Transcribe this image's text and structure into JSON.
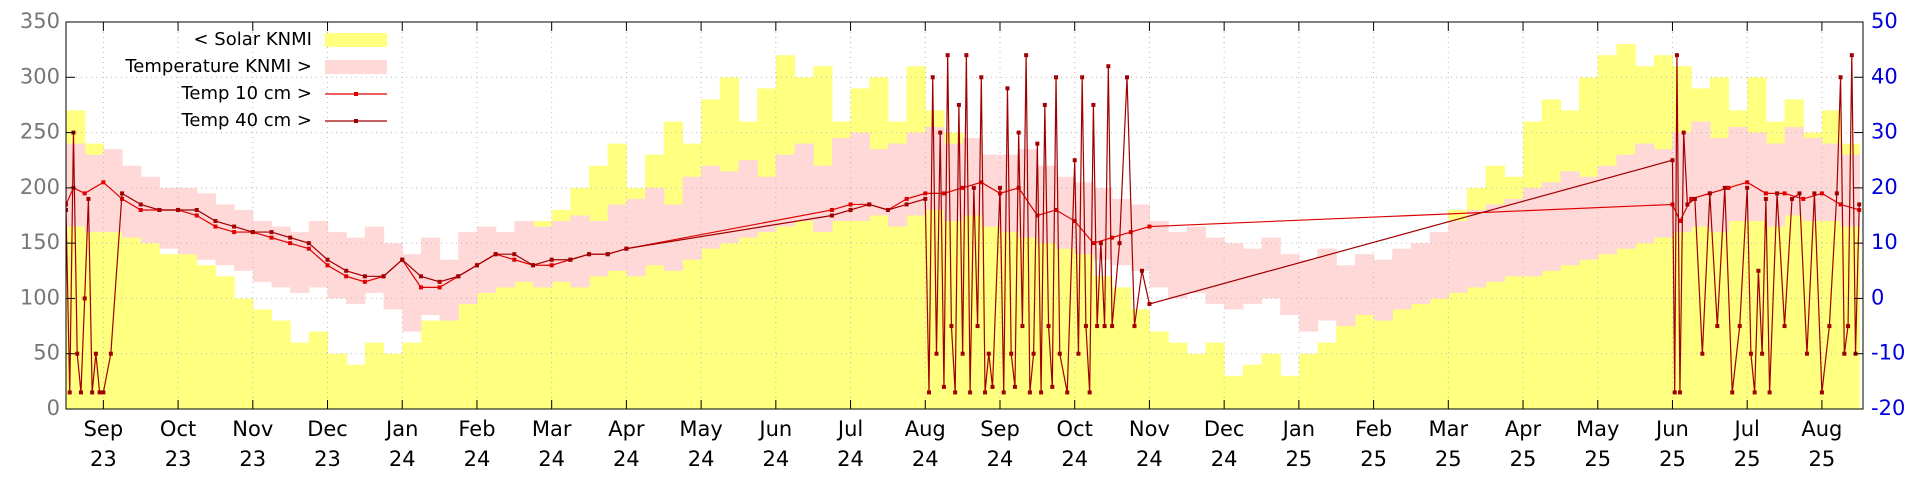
{
  "chart_data": {
    "type": "timeseries",
    "xlim": [
      -0.5,
      23.55
    ],
    "xticks": [
      {
        "value": 0,
        "label": "Sep\n23"
      },
      {
        "value": 1,
        "label": "Oct\n23"
      },
      {
        "value": 2,
        "label": "Nov\n23"
      },
      {
        "value": 3,
        "label": "Dec\n23"
      },
      {
        "value": 4,
        "label": "Jan\n24"
      },
      {
        "value": 5,
        "label": "Feb\n24"
      },
      {
        "value": 6,
        "label": "Mar\n24"
      },
      {
        "value": 7,
        "label": "Apr\n24"
      },
      {
        "value": 8,
        "label": "May\n24"
      },
      {
        "value": 9,
        "label": "Jun\n24"
      },
      {
        "value": 10,
        "label": "Jul\n24"
      },
      {
        "value": 11,
        "label": "Aug\n24"
      },
      {
        "value": 12,
        "label": "Sep\n24"
      },
      {
        "value": 13,
        "label": "Oct\n24"
      },
      {
        "value": 14,
        "label": "Nov\n24"
      },
      {
        "value": 15,
        "label": "Dec\n24"
      },
      {
        "value": 16,
        "label": "Jan\n25"
      },
      {
        "value": 17,
        "label": "Feb\n25"
      },
      {
        "value": 18,
        "label": "Mar\n25"
      },
      {
        "value": 19,
        "label": "Apr\n25"
      },
      {
        "value": 20,
        "label": "May\n25"
      },
      {
        "value": 21,
        "label": "Jun\n25"
      },
      {
        "value": 22,
        "label": "Jul\n25"
      },
      {
        "value": 23,
        "label": "Aug\n25"
      }
    ],
    "ylim": [
      0,
      350
    ],
    "yticks": [
      0,
      50,
      100,
      150,
      200,
      250,
      300,
      350
    ],
    "y2lim": [
      -20,
      50
    ],
    "y2ticks": [
      -20,
      -10,
      0,
      10,
      20,
      30,
      40,
      50
    ],
    "grid": true,
    "legend": "top-left",
    "x": [
      -0.5,
      -0.25,
      0,
      0.25,
      0.5,
      0.75,
      1,
      1.25,
      1.5,
      1.75,
      2,
      2.25,
      2.5,
      2.75,
      3,
      3.25,
      3.5,
      3.75,
      4,
      4.25,
      4.5,
      4.75,
      5,
      5.25,
      5.5,
      5.75,
      6,
      6.25,
      6.5,
      6.75,
      7,
      7.25,
      7.5,
      7.75,
      8,
      8.25,
      8.5,
      8.75,
      9,
      9.25,
      9.5,
      9.75,
      10,
      10.25,
      10.5,
      10.75,
      11,
      11.25,
      11.5,
      11.75,
      12,
      12.25,
      12.5,
      12.75,
      13,
      13.25,
      13.5,
      13.75,
      14,
      14.25,
      14.5,
      14.75,
      15,
      15.25,
      15.5,
      15.75,
      16,
      16.25,
      16.5,
      16.75,
      17,
      17.25,
      17.5,
      17.75,
      18,
      18.25,
      18.5,
      18.75,
      19,
      19.25,
      19.5,
      19.75,
      20,
      20.25,
      20.5,
      20.75,
      21,
      21.25,
      21.5,
      21.75,
      22,
      22.25,
      22.5,
      22.75,
      23,
      23.25
    ],
    "series": [
      {
        "name": "< Solar KNMI",
        "kind": "area",
        "color": "#ffff80",
        "axis": "y",
        "values": [
          270,
          240,
          200,
          170,
          160,
          140,
          150,
          130,
          120,
          100,
          90,
          80,
          60,
          70,
          50,
          40,
          60,
          50,
          60,
          80,
          90,
          100,
          110,
          130,
          150,
          170,
          180,
          200,
          220,
          240,
          200,
          230,
          260,
          240,
          280,
          300,
          260,
          290,
          320,
          300,
          310,
          260,
          290,
          300,
          260,
          310,
          270,
          250,
          240,
          220,
          210,
          200,
          180,
          170,
          150,
          120,
          110,
          90,
          70,
          60,
          50,
          60,
          30,
          40,
          50,
          30,
          50,
          60,
          80,
          90,
          100,
          110,
          140,
          130,
          180,
          200,
          220,
          210,
          260,
          280,
          270,
          300,
          320,
          330,
          310,
          320,
          310,
          290,
          300,
          270,
          300,
          260,
          280,
          250,
          270,
          240
        ]
      },
      {
        "name": "Temperature KNMI >",
        "kind": "band",
        "color": "#ffd8d8",
        "axis": "y2",
        "values": [
          28,
          26,
          27,
          24,
          22,
          20,
          20,
          19,
          17,
          16,
          14,
          13,
          12,
          14,
          12,
          11,
          13,
          10,
          8,
          11,
          7,
          12,
          13,
          12,
          14,
          13,
          14,
          15,
          14,
          17,
          18,
          20,
          17,
          22,
          24,
          23,
          25,
          22,
          26,
          28,
          24,
          29,
          30,
          27,
          28,
          30,
          31,
          28,
          29,
          26,
          26,
          27,
          24,
          22,
          21,
          20,
          18,
          17,
          14,
          12,
          13,
          11,
          10,
          9,
          11,
          8,
          7,
          9,
          6,
          8,
          7,
          9,
          10,
          12,
          14,
          16,
          17,
          18,
          20,
          21,
          23,
          22,
          24,
          26,
          28,
          27,
          30,
          32,
          29,
          31,
          30,
          28,
          31,
          29,
          28,
          26
        ],
        "low": [
          13,
          12,
          12,
          11,
          10,
          9,
          8,
          7,
          6,
          5,
          3,
          2,
          1,
          2,
          0,
          -1,
          1,
          -2,
          -6,
          -3,
          -4,
          -1,
          1,
          2,
          3,
          2,
          3,
          2,
          4,
          5,
          4,
          6,
          5,
          7,
          9,
          10,
          11,
          12,
          13,
          14,
          12,
          14,
          14,
          15,
          13,
          15,
          16,
          14,
          15,
          13,
          12,
          11,
          10,
          9,
          8,
          7,
          6,
          5,
          2,
          0,
          1,
          -1,
          -2,
          -1,
          0,
          -3,
          -6,
          -4,
          -5,
          -3,
          -4,
          -2,
          -1,
          0,
          1,
          2,
          3,
          4,
          4,
          5,
          6,
          7,
          8,
          9,
          10,
          11,
          12,
          13,
          12,
          14,
          14,
          13,
          15,
          14,
          14,
          13
        ]
      },
      {
        "name": "Temp 10 cm >",
        "kind": "line",
        "color": "#e00000",
        "axis": "y2",
        "x": [
          -0.5,
          -0.4,
          -0.25,
          0,
          0.25,
          0.5,
          0.75,
          1,
          1.25,
          1.5,
          1.75,
          2,
          2.25,
          2.5,
          2.75,
          3,
          3.25,
          3.5,
          3.75,
          4,
          4.25,
          4.5,
          4.75,
          5,
          5.25,
          5.5,
          5.75,
          6,
          6.25,
          6.5,
          6.75,
          7,
          9.75,
          10,
          10.25,
          10.5,
          10.75,
          11,
          11.25,
          11.5,
          11.75,
          12,
          12.25,
          12.5,
          12.75,
          13,
          13.25,
          13.5,
          13.75,
          14,
          21,
          21.1,
          21.25,
          21.5,
          21.75,
          22,
          22.25,
          22.5,
          22.75,
          23,
          23.25,
          23.5
        ],
        "values": [
          17,
          20,
          19,
          21,
          18,
          16,
          16,
          16,
          15,
          13,
          12,
          12,
          11,
          10,
          9,
          6,
          4,
          3,
          4,
          7,
          2,
          2,
          4,
          6,
          8,
          7,
          6,
          6,
          7,
          8,
          8,
          9,
          16,
          17,
          17,
          16,
          18,
          19,
          19,
          20,
          21,
          19,
          20,
          15,
          16,
          14,
          10,
          11,
          12,
          13,
          17,
          14,
          18,
          19,
          20,
          21,
          19,
          19,
          18,
          19,
          17,
          16
        ]
      },
      {
        "name": "Temp 40 cm >",
        "kind": "line",
        "color": "#a00000",
        "axis": "y2",
        "x": [
          -0.5,
          -0.45,
          -0.4,
          -0.35,
          -0.3,
          -0.25,
          -0.2,
          -0.15,
          -0.1,
          -0.05,
          0,
          0.1,
          0.25,
          0.5,
          0.75,
          1,
          1.25,
          1.5,
          1.75,
          2,
          2.25,
          2.5,
          2.75,
          3,
          3.25,
          3.5,
          3.75,
          4,
          4.25,
          4.5,
          4.75,
          5,
          5.25,
          5.5,
          5.75,
          6,
          6.25,
          6.5,
          6.75,
          7,
          9.75,
          10,
          10.25,
          10.5,
          10.75,
          11,
          11.05,
          11.1,
          11.15,
          11.2,
          11.25,
          11.3,
          11.35,
          11.4,
          11.45,
          11.5,
          11.55,
          11.6,
          11.65,
          11.7,
          11.75,
          11.8,
          11.85,
          11.9,
          12,
          12.05,
          12.1,
          12.15,
          12.2,
          12.25,
          12.3,
          12.35,
          12.4,
          12.45,
          12.5,
          12.55,
          12.6,
          12.65,
          12.7,
          12.75,
          12.8,
          12.9,
          13,
          13.05,
          13.1,
          13.15,
          13.2,
          13.25,
          13.3,
          13.35,
          13.4,
          13.45,
          13.5,
          13.6,
          13.7,
          13.8,
          13.9,
          14,
          21,
          21.03,
          21.06,
          21.1,
          21.15,
          21.2,
          21.3,
          21.4,
          21.5,
          21.6,
          21.7,
          21.8,
          21.9,
          22,
          22.05,
          22.1,
          22.15,
          22.2,
          22.25,
          22.3,
          22.4,
          22.5,
          22.6,
          22.7,
          22.8,
          22.9,
          23,
          23.1,
          23.2,
          23.25,
          23.3,
          23.35,
          23.4,
          23.45,
          23.5
        ],
        "values": [
          16,
          -17,
          30,
          -10,
          -17,
          0,
          18,
          -17,
          -10,
          -17,
          -17,
          -10,
          19,
          17,
          16,
          16,
          16,
          14,
          13,
          12,
          12,
          11,
          10,
          7,
          5,
          4,
          4,
          7,
          4,
          3,
          4,
          6,
          8,
          8,
          6,
          7,
          7,
          8,
          8,
          9,
          15,
          16,
          17,
          16,
          17,
          18,
          -17,
          40,
          -10,
          30,
          -16,
          44,
          -5,
          -17,
          35,
          -10,
          44,
          -17,
          20,
          -5,
          40,
          -17,
          -10,
          -16,
          20,
          -17,
          38,
          -10,
          -16,
          30,
          -5,
          44,
          -17,
          -10,
          28,
          -17,
          35,
          -5,
          -16,
          40,
          -10,
          -17,
          25,
          -10,
          40,
          -5,
          -17,
          35,
          -5,
          10,
          -5,
          42,
          -5,
          10,
          40,
          -5,
          5,
          -1,
          25,
          -17,
          44,
          -17,
          30,
          17,
          18,
          -10,
          19,
          -5,
          20,
          -17,
          -5,
          20,
          -10,
          -17,
          5,
          -10,
          18,
          -17,
          19,
          -5,
          18,
          19,
          -10,
          19,
          -17,
          -5,
          19,
          40,
          -10,
          -5,
          44,
          -10,
          17
        ]
      }
    ]
  }
}
